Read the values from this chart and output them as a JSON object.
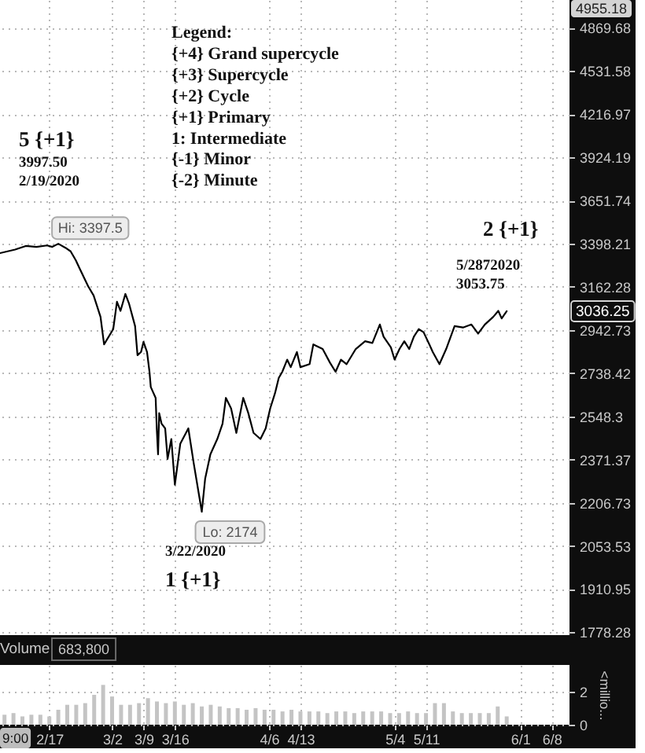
{
  "chart_data": [
    {
      "type": "line",
      "log": true,
      "grid": true,
      "tick_labels": "y",
      "x": [
        "2020-02-06",
        "2020-02-09T09:00",
        "2020-02-11T18:00",
        "2020-02-14T03:00",
        "2020-02-16T12:00",
        "2020-02-17T16:00",
        "2020-02-19",
        "2020-02-20T14:00",
        "2020-02-21T18:00",
        "2020-02-22T22:00",
        "2020-02-23T17:00",
        "2020-02-25T16:00",
        "2020-02-26T21:00",
        "2020-02-28T10:00",
        "2020-02-29T05:00",
        "2020-03-02T06:00",
        "2020-03-03T02:00",
        "2020-03-03T21:00",
        "2020-03-04T23:00",
        "2020-03-05T18:00",
        "2020-03-07T03:00",
        "2020-03-07T16:00",
        "2020-03-08T11:00",
        "2020-03-09T00:00",
        "2020-03-09T19:00",
        "2020-03-10T08:00",
        "2020-03-10T15:00",
        "2020-03-11T17:00",
        "2020-03-11T23:00",
        "2020-03-12T06:00",
        "2020-03-12T12:00",
        "2020-03-13T01:00",
        "2020-03-13T20:00",
        "2020-03-14T09:00",
        "2020-03-15T05:00",
        "2020-03-16T00:00",
        "2020-03-17T05:00",
        "2020-03-19T00:00",
        "2020-03-20T05:00",
        "2020-03-22",
        "2020-03-22T18:00",
        "2020-03-23T22:00",
        "2020-03-25T11:00",
        "2020-03-26T15:00",
        "2020-03-27T09:00",
        "2020-03-28T13:00",
        "2020-03-29T17:00",
        "2020-03-31T06:00",
        "2020-04-01T09:00",
        "2020-04-02T13:00",
        "2020-04-04T02:00",
        "2020-04-05T06:00",
        "2020-04-06T06:00",
        "2020-04-07T08:00",
        "2020-04-08T04:00",
        "2020-04-08T23:00",
        "2020-04-10T01:00",
        "2020-04-10T20:00",
        "2020-04-12T05:00",
        "2020-04-13T00:00",
        "2020-04-15T01:00",
        "2020-04-15T21:00",
        "2020-04-17T23:00",
        "2020-04-19T14:00",
        "2020-04-20T20:00",
        "2020-04-22T01:00",
        "2020-04-23T07:00",
        "2020-04-25T08:00",
        "2020-04-27T10:00",
        "2020-04-29T01:00",
        "2020-04-30T17:00",
        "2020-05-01T13:00",
        "2020-05-03T04:00",
        "2020-05-04T00:00",
        "2020-05-05T02:00",
        "2020-05-06T04:00",
        "2020-05-07T06:00",
        "2020-05-08T07:00",
        "2020-05-09T09:00",
        "2020-05-10T11:00",
        "2020-05-11T18:00",
        "2020-05-12T12:00",
        "2020-05-14T00:00",
        "2020-05-15T12:00",
        "2020-05-17T09:00",
        "2020-05-19T06:00",
        "2020-05-21T03:00",
        "2020-05-22T15:00",
        "2020-05-24T03:00",
        "2020-05-26T00:00",
        "2020-05-27T03:00",
        "2020-05-27T21:00",
        "2020-05-29T00:00"
      ],
      "series": [
        {
          "color": "#000000",
          "values": [
            3345,
            3365,
            3385,
            3380,
            3388,
            3380,
            3397.5,
            3375,
            3355,
            3305,
            3263,
            3165,
            3117,
            3008,
            2873,
            2947,
            3085,
            3038,
            3125,
            3077,
            2962,
            2822,
            2837,
            2885,
            2837,
            2745,
            2676,
            2628,
            2498,
            2392,
            2562,
            2517,
            2498,
            2374,
            2454,
            2274,
            2435,
            2498,
            2356,
            2174,
            2297,
            2392,
            2454,
            2517,
            2628,
            2582,
            2479,
            2628,
            2562,
            2479,
            2454,
            2498,
            2582,
            2649,
            2717,
            2745,
            2801,
            2766,
            2837,
            2766,
            2780,
            2873,
            2851,
            2787,
            2745,
            2801,
            2780,
            2851,
            2888,
            2880,
            2970,
            2910,
            2859,
            2801,
            2851,
            2888,
            2851,
            2910,
            2947,
            2932,
            2873,
            2837,
            2780,
            2851,
            2962,
            2955,
            2970,
            2925,
            2970,
            3008,
            3038,
            3000,
            3036.25
          ]
        }
      ],
      "xlim": [
        "2020-02-06",
        "2020-06-12"
      ],
      "ylim": [
        1770,
        5100
      ],
      "xticks": [
        {
          "value": "2020-02-17",
          "label": null
        },
        {
          "value": "2020-03-02",
          "label": null
        },
        {
          "value": "2020-03-09",
          "label": null
        },
        {
          "value": "2020-03-16",
          "label": null
        },
        {
          "value": "2020-04-06",
          "label": null
        },
        {
          "value": "2020-04-13",
          "label": null
        },
        {
          "value": "2020-05-04",
          "label": null
        },
        {
          "value": "2020-05-11",
          "label": null
        },
        {
          "value": "2020-06-01",
          "label": null
        },
        {
          "value": "2020-06-08",
          "label": null
        }
      ],
      "yticks": [
        1778.28,
        1910.95,
        2053.53,
        2206.73,
        2371.37,
        2548.3,
        2738.42,
        2942.73,
        3162.28,
        3398.21,
        3651.74,
        3924.19,
        4216.97,
        4531.58,
        4869.68
      ],
      "annotations": [
        "Legend:",
        "{+4} Grand supercycle",
        "{+3} Supercycle",
        "{+2} Cycle",
        "{+1} Primary",
        "1: Intermediate",
        "{-1} Minor",
        "{-2} Minute",
        "5 {+1}",
        "3997.50",
        "2/19/2020",
        {
          "text": "Hi: 3397.5",
          "x": "2020-02-19",
          "y": 3397.5
        },
        {
          "text": "Lo: 2174",
          "x": "2020-03-22",
          "y": 2174
        },
        "3/22/2020",
        "1 {+1}",
        "2 {+1}",
        "5/2872020",
        "3053.75",
        "3036.25",
        "4955.18"
      ]
    },
    {
      "type": "bar",
      "title": "Volume",
      "ylabel": "<millio...",
      "grid": true,
      "x": [
        "2020-02-07",
        "2020-02-09",
        "2020-02-11",
        "2020-02-13",
        "2020-02-15",
        "2020-02-17",
        "2020-02-19",
        "2020-02-21",
        "2020-02-23",
        "2020-02-25",
        "2020-02-27",
        "2020-02-29",
        "2020-03-02",
        "2020-03-04",
        "2020-03-06",
        "2020-03-08",
        "2020-03-10",
        "2020-03-12",
        "2020-03-14",
        "2020-03-16",
        "2020-03-18",
        "2020-03-20",
        "2020-03-22",
        "2020-03-24",
        "2020-03-26",
        "2020-03-28",
        "2020-03-30",
        "2020-04-01",
        "2020-04-03",
        "2020-04-05",
        "2020-04-07",
        "2020-04-09",
        "2020-04-11",
        "2020-04-13",
        "2020-04-15",
        "2020-04-17",
        "2020-04-19",
        "2020-04-21",
        "2020-04-23",
        "2020-04-25",
        "2020-04-27",
        "2020-04-29",
        "2020-05-01",
        "2020-05-03",
        "2020-05-05",
        "2020-05-07",
        "2020-05-09",
        "2020-05-11",
        "2020-05-13",
        "2020-05-15",
        "2020-05-17",
        "2020-05-19",
        "2020-05-21",
        "2020-05-23",
        "2020-05-25",
        "2020-05-27",
        "2020-05-29"
      ],
      "series": [
        {
          "color": "#c4c4c4",
          "values": [
            0.6,
            0.7,
            0.5,
            0.6,
            0.6,
            0.5,
            0.9,
            1.2,
            1.2,
            1.3,
            1.8,
            2.4,
            1.7,
            1.2,
            1.2,
            1.3,
            1.6,
            1.4,
            1.3,
            1.4,
            1.2,
            1.3,
            1.1,
            1.2,
            1.1,
            1.0,
            1.0,
            0.9,
            1.0,
            0.9,
            0.9,
            0.8,
            0.9,
            0.8,
            0.8,
            0.8,
            0.7,
            0.8,
            0.8,
            0.7,
            0.8,
            0.8,
            0.8,
            0.7,
            0.7,
            0.8,
            0.7,
            0.7,
            1.3,
            1.3,
            0.8,
            0.7,
            0.7,
            0.7,
            0.7,
            1.1,
            0.5
          ]
        }
      ],
      "xlim": [
        "2020-02-06",
        "2020-06-12"
      ],
      "ylim": [
        0,
        3.6
      ],
      "yticks": [
        0,
        2
      ],
      "xticks": [
        {
          "value": "2020-02-17",
          "label": "2/17"
        },
        {
          "value": "2020-03-02",
          "label": "3/2"
        },
        {
          "value": "2020-03-09",
          "label": "3/9"
        },
        {
          "value": "2020-03-16",
          "label": "3/16"
        },
        {
          "value": "2020-04-06",
          "label": "4/6"
        },
        {
          "value": "2020-04-13",
          "label": "4/13"
        },
        {
          "value": "2020-05-04",
          "label": "5/4"
        },
        {
          "value": "2020-05-11",
          "label": "5/11"
        },
        {
          "value": "2020-06-01",
          "label": "6/1"
        },
        {
          "value": "2020-06-08",
          "label": "6/8"
        }
      ],
      "annotations": [
        "683,800",
        "9:00"
      ]
    }
  ]
}
